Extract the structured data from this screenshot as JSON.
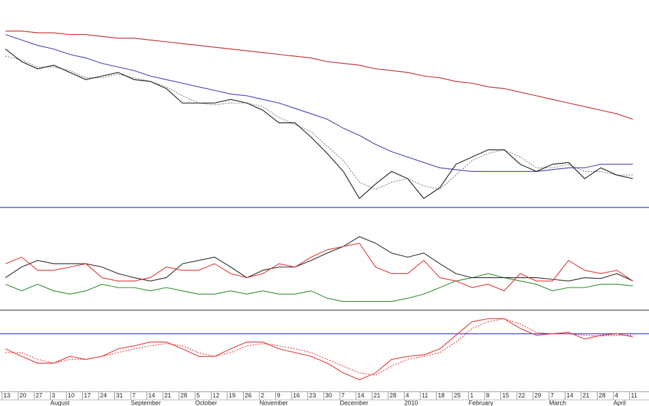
{
  "chart_data": [
    {
      "type": "line",
      "ylim": [
        0,
        100
      ],
      "hlines": [
        0
      ],
      "hline_color": "#4040c8",
      "series": [
        {
          "color": "#c02020",
          "values": [
            98,
            98,
            97,
            97,
            96,
            96,
            95,
            94,
            94,
            93,
            92,
            91,
            90,
            89,
            88,
            87,
            86,
            85,
            84,
            83,
            81,
            80,
            79,
            77,
            76,
            75,
            73,
            72,
            70,
            69,
            67,
            66,
            64,
            62,
            60,
            58,
            56,
            54,
            52,
            49
          ]
        },
        {
          "color": "#3a3ab0",
          "values": [
            96,
            93,
            90,
            88,
            85,
            83,
            80,
            78,
            76,
            73,
            71,
            69,
            67,
            65,
            63,
            62,
            60,
            58,
            55,
            52,
            49,
            44,
            40,
            35,
            31,
            28,
            25,
            22,
            21,
            20,
            20,
            20,
            20,
            20,
            21,
            22,
            22,
            24,
            24,
            24
          ]
        },
        {
          "color": "#777777",
          "dashed": true,
          "values": [
            84,
            82,
            78,
            78,
            76,
            72,
            72,
            74,
            72,
            70,
            67,
            62,
            58,
            57,
            58,
            58,
            56,
            50,
            46,
            42,
            34,
            26,
            14,
            10,
            14,
            16,
            12,
            10,
            18,
            26,
            30,
            32,
            28,
            22,
            22,
            24,
            20,
            20,
            18,
            18
          ]
        },
        {
          "color": "#111111",
          "values": [
            88,
            81,
            77,
            79,
            75,
            71,
            73,
            75,
            71,
            70,
            66,
            58,
            58,
            58,
            60,
            58,
            54,
            47,
            47,
            39,
            30,
            20,
            5,
            13,
            20,
            16,
            5,
            11,
            24,
            28,
            32,
            32,
            24,
            20,
            24,
            25,
            16,
            22,
            18,
            16
          ]
        }
      ]
    },
    {
      "type": "line",
      "ylim": [
        0,
        100
      ],
      "series": [
        {
          "color": "#2a8a2a",
          "values": [
            29,
            21,
            29,
            21,
            17,
            21,
            29,
            25,
            25,
            21,
            25,
            21,
            17,
            17,
            21,
            17,
            21,
            17,
            17,
            21,
            12,
            8,
            8,
            8,
            8,
            12,
            17,
            25,
            33,
            37,
            42,
            37,
            33,
            29,
            21,
            25,
            25,
            29,
            29,
            27
          ]
        },
        {
          "color": "#222222",
          "values": [
            37,
            50,
            58,
            54,
            54,
            54,
            50,
            42,
            37,
            33,
            37,
            54,
            58,
            62,
            50,
            37,
            46,
            50,
            50,
            58,
            67,
            75,
            87,
            79,
            67,
            62,
            67,
            54,
            42,
            37,
            37,
            37,
            37,
            37,
            35,
            33,
            37,
            36,
            42,
            33
          ]
        },
        {
          "color": "#e03030",
          "values": [
            54,
            62,
            46,
            46,
            50,
            54,
            37,
            33,
            33,
            37,
            50,
            46,
            46,
            54,
            42,
            37,
            42,
            54,
            50,
            62,
            71,
            75,
            79,
            50,
            42,
            42,
            58,
            37,
            33,
            25,
            29,
            21,
            42,
            33,
            33,
            58,
            46,
            42,
            46,
            33
          ]
        }
      ]
    },
    {
      "type": "line",
      "ylim": [
        0,
        100
      ],
      "hlines": [
        75
      ],
      "hline_color": "#4040c8",
      "series": [
        {
          "color": "#e03030",
          "dashed": true,
          "values": [
            50,
            50,
            41,
            36,
            41,
            41,
            45,
            50,
            55,
            59,
            62,
            59,
            50,
            45,
            50,
            59,
            62,
            59,
            55,
            50,
            41,
            32,
            23,
            20,
            32,
            41,
            45,
            50,
            64,
            82,
            91,
            95,
            88,
            77,
            75,
            75,
            73,
            72,
            73,
            73
          ]
        },
        {
          "color": "#e03030",
          "values": [
            55,
            45,
            36,
            36,
            45,
            41,
            45,
            55,
            59,
            64,
            64,
            55,
            45,
            45,
            55,
            64,
            64,
            55,
            50,
            45,
            36,
            23,
            14,
            23,
            41,
            45,
            47,
            55,
            73,
            91,
            95,
            95,
            82,
            73,
            75,
            77,
            68,
            73,
            75,
            71
          ]
        }
      ],
      "categories": [
        "13",
        "20",
        "27",
        "3",
        "10",
        "17",
        "24",
        "31",
        "7",
        "14",
        "21",
        "28",
        "5",
        "12",
        "19",
        "26",
        "2",
        "9",
        "16",
        "23",
        "30",
        "7",
        "14",
        "21",
        "28",
        "4",
        "11",
        "18",
        "25",
        "1",
        "8",
        "15",
        "22",
        "29",
        "7",
        "14",
        "21",
        "28",
        "4",
        "11"
      ],
      "months": [
        "August",
        "September",
        "October",
        "November",
        "December",
        "2010",
        "February",
        "March",
        "April"
      ]
    }
  ]
}
